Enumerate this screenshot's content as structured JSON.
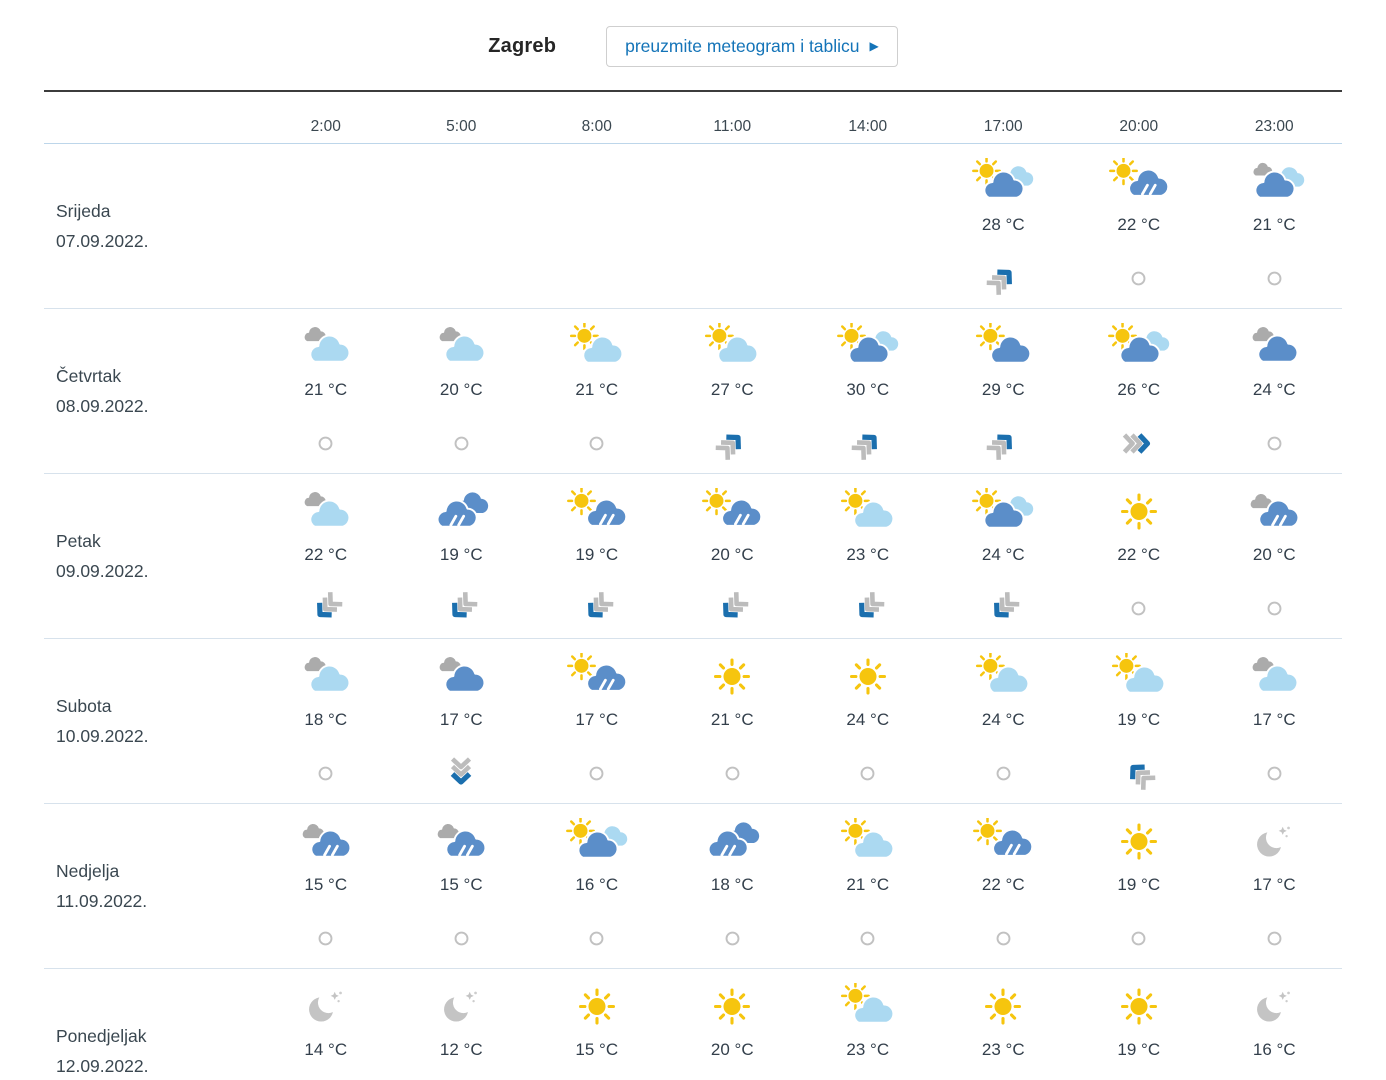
{
  "header": {
    "city": "Zagreb",
    "download_button": "preuzmite meteogram i tablicu",
    "download_button_arrow": "▶"
  },
  "colors": {
    "sun": "#F6C50E",
    "cloud_blue": "#5B8EC9",
    "cloud_light": "#ABD9F1",
    "cloud_gray": "#ABABAB",
    "moon_gray": "#C4C4C4",
    "moon_star": "#CDCDCD",
    "wind_blue": "#1B6FAE",
    "wind_gray": "#BCBCBC",
    "calm_gray": "#C1C1C1",
    "accent_blue": "#1474B8"
  },
  "table": {
    "times": [
      "2:00",
      "5:00",
      "8:00",
      "11:00",
      "14:00",
      "17:00",
      "20:00",
      "23:00"
    ],
    "days": [
      {
        "name": "Srijeda",
        "date": "07.09.2022.",
        "cells": [
          null,
          null,
          null,
          null,
          null,
          {
            "icon": "sun-bluecloud-lightcloud",
            "temp": "28 °C",
            "wind": "ne"
          },
          {
            "icon": "sun-raincloud",
            "temp": "22 °C",
            "wind": "calm"
          },
          {
            "icon": "graycloud-bluecloud-lightcloud",
            "temp": "21 °C",
            "wind": "calm"
          }
        ]
      },
      {
        "name": "Četvrtak",
        "date": "08.09.2022.",
        "cells": [
          {
            "icon": "graycloud-lightcloud",
            "temp": "21 °C",
            "wind": "calm"
          },
          {
            "icon": "graycloud-lightcloud",
            "temp": "20 °C",
            "wind": "calm"
          },
          {
            "icon": "sun-lightcloud",
            "temp": "21 °C",
            "wind": "calm"
          },
          {
            "icon": "sun-lightcloud",
            "temp": "27 °C",
            "wind": "ne"
          },
          {
            "icon": "sun-bluecloud-lightcloud",
            "temp": "30 °C",
            "wind": "ne"
          },
          {
            "icon": "sun-bluecloud",
            "temp": "29 °C",
            "wind": "ne"
          },
          {
            "icon": "sun-bluecloud-lightcloud",
            "temp": "26 °C",
            "wind": "e"
          },
          {
            "icon": "graycloud-bluecloud",
            "temp": "24 °C",
            "wind": "calm"
          }
        ]
      },
      {
        "name": "Petak",
        "date": "09.09.2022.",
        "cells": [
          {
            "icon": "graycloud-lightcloud",
            "temp": "22 °C",
            "wind": "sw"
          },
          {
            "icon": "raincloud-bluecloud",
            "temp": "19 °C",
            "wind": "sw"
          },
          {
            "icon": "sun-raincloud",
            "temp": "19 °C",
            "wind": "sw"
          },
          {
            "icon": "sun-raincloud",
            "temp": "20 °C",
            "wind": "sw"
          },
          {
            "icon": "sun-lightcloud",
            "temp": "23 °C",
            "wind": "sw"
          },
          {
            "icon": "sun-bluecloud-lightcloud",
            "temp": "24 °C",
            "wind": "sw"
          },
          {
            "icon": "sun",
            "temp": "22 °C",
            "wind": "calm"
          },
          {
            "icon": "graycloud-raincloud",
            "temp": "20 °C",
            "wind": "calm"
          }
        ]
      },
      {
        "name": "Subota",
        "date": "10.09.2022.",
        "cells": [
          {
            "icon": "graycloud-lightcloud",
            "temp": "18 °C",
            "wind": "calm"
          },
          {
            "icon": "graycloud-bluecloud",
            "temp": "17 °C",
            "wind": "s"
          },
          {
            "icon": "sun-raincloud",
            "temp": "17 °C",
            "wind": "calm"
          },
          {
            "icon": "sun",
            "temp": "21 °C",
            "wind": "calm"
          },
          {
            "icon": "sun",
            "temp": "24 °C",
            "wind": "calm"
          },
          {
            "icon": "sun-lightcloud",
            "temp": "24 °C",
            "wind": "calm"
          },
          {
            "icon": "sun-lightcloud",
            "temp": "19 °C",
            "wind": "nw"
          },
          {
            "icon": "graycloud-lightcloud",
            "temp": "17 °C",
            "wind": "calm"
          }
        ]
      },
      {
        "name": "Nedjelja",
        "date": "11.09.2022.",
        "cells": [
          {
            "icon": "graycloud-raincloud",
            "temp": "15 °C",
            "wind": "calm"
          },
          {
            "icon": "graycloud-raincloud",
            "temp": "15 °C",
            "wind": "calm"
          },
          {
            "icon": "sun-bluecloud-lightcloud",
            "temp": "16 °C",
            "wind": "calm"
          },
          {
            "icon": "raincloud-bluecloud",
            "temp": "18 °C",
            "wind": "calm"
          },
          {
            "icon": "sun-lightcloud",
            "temp": "21 °C",
            "wind": "calm"
          },
          {
            "icon": "sun-raincloud",
            "temp": "22 °C",
            "wind": "calm"
          },
          {
            "icon": "sun",
            "temp": "19 °C",
            "wind": "calm"
          },
          {
            "icon": "moon-stars",
            "temp": "17 °C",
            "wind": "calm"
          }
        ]
      },
      {
        "name": "Ponedjeljak",
        "date": "12.09.2022.",
        "cells": [
          {
            "icon": "moon-stars",
            "temp": "14 °C",
            "wind": null
          },
          {
            "icon": "moon-stars",
            "temp": "12 °C",
            "wind": null
          },
          {
            "icon": "sun",
            "temp": "15 °C",
            "wind": null
          },
          {
            "icon": "sun",
            "temp": "20 °C",
            "wind": null
          },
          {
            "icon": "sun-lightcloud",
            "temp": "23 °C",
            "wind": null
          },
          {
            "icon": "sun",
            "temp": "23 °C",
            "wind": null
          },
          {
            "icon": "sun",
            "temp": "19 °C",
            "wind": null
          },
          {
            "icon": "moon-stars",
            "temp": "16 °C",
            "wind": null
          }
        ]
      }
    ]
  }
}
